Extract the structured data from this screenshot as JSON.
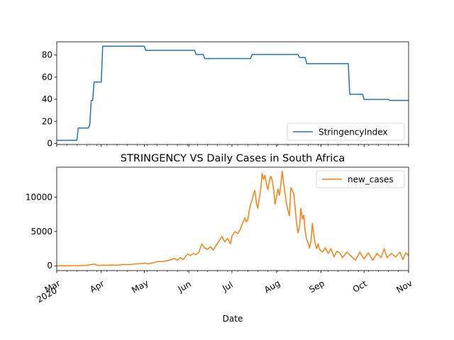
{
  "chart_data": [
    {
      "type": "line",
      "title": "",
      "xlabel": "",
      "ylabel": "",
      "xlim": [
        "2020-03-01",
        "2020-11-01"
      ],
      "ylim": [
        -1,
        92
      ],
      "yticks": [
        0,
        20,
        40,
        60,
        80
      ],
      "legend": "lower-right",
      "grid": false,
      "series": [
        {
          "name": "StringencyIndex",
          "color": "#1f77b4",
          "step": true,
          "points": [
            [
              "2020-03-01",
              2.78
            ],
            [
              "2020-03-15",
              2.78
            ],
            [
              "2020-03-16",
              13.89
            ],
            [
              "2020-03-23",
              13.89
            ],
            [
              "2020-03-24",
              17.0
            ],
            [
              "2020-03-25",
              38.9
            ],
            [
              "2020-03-26",
              38.9
            ],
            [
              "2020-03-27",
              55.56
            ],
            [
              "2020-04-01",
              55.56
            ],
            [
              "2020-04-02",
              87.96
            ],
            [
              "2020-05-01",
              87.96
            ],
            [
              "2020-05-02",
              84.26
            ],
            [
              "2020-06-05",
              84.26
            ],
            [
              "2020-06-06",
              80.56
            ],
            [
              "2020-06-11",
              80.56
            ],
            [
              "2020-06-12",
              76.85
            ],
            [
              "2020-07-14",
              76.85
            ],
            [
              "2020-07-15",
              80.56
            ],
            [
              "2020-08-16",
              80.56
            ],
            [
              "2020-08-17",
              77.78
            ],
            [
              "2020-08-21",
              77.78
            ],
            [
              "2020-08-22",
              72.22
            ],
            [
              "2020-09-20",
              72.22
            ],
            [
              "2020-09-21",
              44.44
            ],
            [
              "2020-09-30",
              44.44
            ],
            [
              "2020-10-01",
              39.81
            ],
            [
              "2020-10-18",
              39.81
            ],
            [
              "2020-10-19",
              38.89
            ],
            [
              "2020-11-01",
              38.89
            ]
          ]
        }
      ]
    },
    {
      "type": "line",
      "title": "STRINGENCY VS Daily Cases in South Africa",
      "xlabel": "Date",
      "ylabel": "",
      "xlim": [
        "2020-03-01",
        "2020-11-01"
      ],
      "ylim": [
        -700,
        14400
      ],
      "yticks": [
        0,
        5000,
        10000
      ],
      "xticks": [
        "Mar\n2020",
        "Apr",
        "May",
        "Jun",
        "Jul",
        "Aug",
        "Sep",
        "Oct",
        "Nov"
      ],
      "legend": "upper-right",
      "grid": false,
      "series": [
        {
          "name": "new_cases",
          "color": "#ff7f0e",
          "points": [
            [
              "2020-03-01",
              0
            ],
            [
              "2020-03-05",
              1
            ],
            [
              "2020-03-10",
              5
            ],
            [
              "2020-03-15",
              20
            ],
            [
              "2020-03-18",
              30
            ],
            [
              "2020-03-22",
              80
            ],
            [
              "2020-03-24",
              150
            ],
            [
              "2020-03-26",
              200
            ],
            [
              "2020-03-27",
              260
            ],
            [
              "2020-03-28",
              150
            ],
            [
              "2020-03-30",
              50
            ],
            [
              "2020-04-02",
              100
            ],
            [
              "2020-04-05",
              80
            ],
            [
              "2020-04-08",
              120
            ],
            [
              "2020-04-12",
              90
            ],
            [
              "2020-04-16",
              180
            ],
            [
              "2020-04-20",
              160
            ],
            [
              "2020-04-24",
              250
            ],
            [
              "2020-04-28",
              320
            ],
            [
              "2020-05-01",
              380
            ],
            [
              "2020-05-04",
              300
            ],
            [
              "2020-05-07",
              420
            ],
            [
              "2020-05-10",
              600
            ],
            [
              "2020-05-14",
              650
            ],
            [
              "2020-05-17",
              750
            ],
            [
              "2020-05-20",
              900
            ],
            [
              "2020-05-22",
              1100
            ],
            [
              "2020-05-24",
              800
            ],
            [
              "2020-05-26",
              1200
            ],
            [
              "2020-05-28",
              900
            ],
            [
              "2020-05-31",
              1700
            ],
            [
              "2020-06-02",
              1500
            ],
            [
              "2020-06-04",
              1800
            ],
            [
              "2020-06-06",
              1600
            ],
            [
              "2020-06-08",
              2000
            ],
            [
              "2020-06-10",
              3200
            ],
            [
              "2020-06-12",
              2600
            ],
            [
              "2020-06-14",
              2400
            ],
            [
              "2020-06-16",
              2800
            ],
            [
              "2020-06-18",
              2300
            ],
            [
              "2020-06-20",
              3000
            ],
            [
              "2020-06-22",
              3600
            ],
            [
              "2020-06-24",
              4300
            ],
            [
              "2020-06-26",
              3500
            ],
            [
              "2020-06-28",
              4000
            ],
            [
              "2020-06-30",
              3200
            ],
            [
              "2020-07-01",
              4300
            ],
            [
              "2020-07-03",
              5000
            ],
            [
              "2020-07-05",
              4700
            ],
            [
              "2020-07-07",
              5400
            ],
            [
              "2020-07-08",
              6000
            ],
            [
              "2020-07-09",
              6500
            ],
            [
              "2020-07-10",
              7000
            ],
            [
              "2020-07-11",
              6400
            ],
            [
              "2020-07-12",
              6700
            ],
            [
              "2020-07-13",
              8000
            ],
            [
              "2020-07-14",
              9000
            ],
            [
              "2020-07-15",
              9500
            ],
            [
              "2020-07-16",
              10500
            ],
            [
              "2020-07-17",
              11000
            ],
            [
              "2020-07-18",
              9200
            ],
            [
              "2020-07-19",
              8400
            ],
            [
              "2020-07-20",
              9800
            ],
            [
              "2020-07-21",
              11100
            ],
            [
              "2020-07-22",
              13500
            ],
            [
              "2020-07-23",
              12600
            ],
            [
              "2020-07-24",
              13200
            ],
            [
              "2020-07-25",
              12000
            ],
            [
              "2020-07-26",
              11100
            ],
            [
              "2020-07-27",
              12300
            ],
            [
              "2020-07-28",
              13100
            ],
            [
              "2020-07-29",
              12500
            ],
            [
              "2020-07-30",
              11100
            ],
            [
              "2020-07-31",
              9000
            ],
            [
              "2020-08-01",
              10000
            ],
            [
              "2020-08-02",
              11200
            ],
            [
              "2020-08-03",
              10300
            ],
            [
              "2020-08-04",
              11800
            ],
            [
              "2020-08-05",
              13800
            ],
            [
              "2020-08-06",
              12000
            ],
            [
              "2020-08-07",
              10500
            ],
            [
              "2020-08-08",
              9000
            ],
            [
              "2020-08-09",
              8100
            ],
            [
              "2020-08-10",
              7300
            ],
            [
              "2020-08-11",
              11400
            ],
            [
              "2020-08-12",
              11000
            ],
            [
              "2020-08-13",
              10500
            ],
            [
              "2020-08-14",
              8500
            ],
            [
              "2020-08-15",
              6200
            ],
            [
              "2020-08-16",
              4800
            ],
            [
              "2020-08-17",
              5600
            ],
            [
              "2020-08-18",
              8400
            ],
            [
              "2020-08-19",
              6800
            ],
            [
              "2020-08-20",
              7400
            ],
            [
              "2020-08-21",
              5000
            ],
            [
              "2020-08-22",
              3800
            ],
            [
              "2020-08-23",
              3400
            ],
            [
              "2020-08-24",
              2600
            ],
            [
              "2020-08-25",
              3600
            ],
            [
              "2020-08-26",
              6200
            ],
            [
              "2020-08-27",
              4500
            ],
            [
              "2020-08-28",
              3200
            ],
            [
              "2020-08-29",
              2500
            ],
            [
              "2020-08-30",
              3200
            ],
            [
              "2020-08-31",
              2400
            ],
            [
              "2020-09-02",
              2000
            ],
            [
              "2020-09-04",
              2600
            ],
            [
              "2020-09-06",
              1800
            ],
            [
              "2020-09-08",
              2500
            ],
            [
              "2020-09-10",
              1300
            ],
            [
              "2020-09-12",
              2100
            ],
            [
              "2020-09-14",
              1900
            ],
            [
              "2020-09-16",
              1200
            ],
            [
              "2020-09-19",
              2000
            ],
            [
              "2020-09-22",
              1400
            ],
            [
              "2020-09-25",
              800
            ],
            [
              "2020-09-28",
              2000
            ],
            [
              "2020-10-01",
              1000
            ],
            [
              "2020-10-04",
              1900
            ],
            [
              "2020-10-07",
              800
            ],
            [
              "2020-10-10",
              1800
            ],
            [
              "2020-10-13",
              1200
            ],
            [
              "2020-10-15",
              2500
            ],
            [
              "2020-10-17",
              1200
            ],
            [
              "2020-10-20",
              1800
            ],
            [
              "2020-10-23",
              1300
            ],
            [
              "2020-10-26",
              2000
            ],
            [
              "2020-10-28",
              900
            ],
            [
              "2020-10-30",
              1900
            ],
            [
              "2020-11-01",
              1500
            ]
          ]
        }
      ]
    }
  ]
}
